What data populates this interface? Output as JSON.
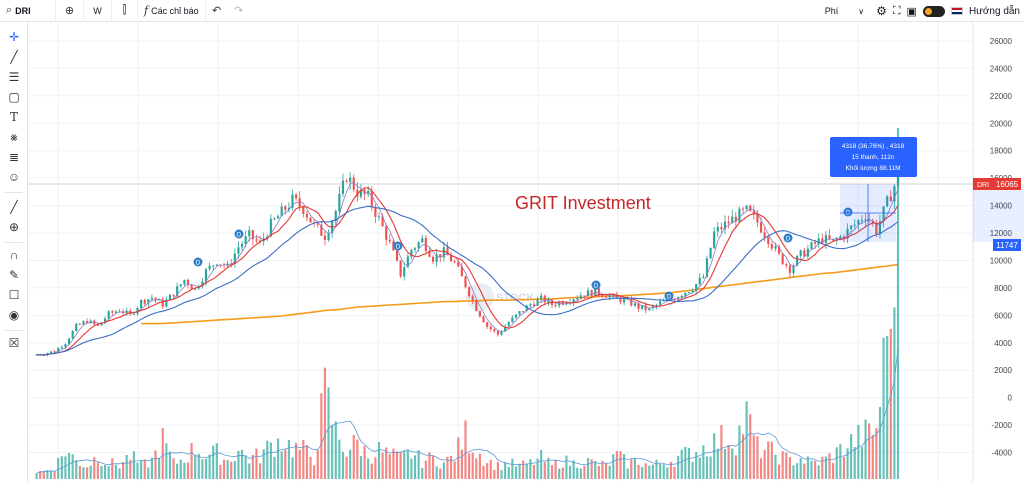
{
  "toolbar": {
    "symbol": "DRI",
    "interval": "W",
    "indicators_label": "Các chỉ báo",
    "fee_label": "Phí",
    "guide_label": "Hướng dẫn"
  },
  "icons": {
    "search": "search-icon",
    "add": "plus-circle-icon",
    "chart_type": "candles-icon",
    "indicators": "function-icon",
    "undo": "undo-icon",
    "redo": "redo-icon",
    "settings": "gear-icon",
    "fullscreen": "fullscreen-icon",
    "snapshot": "camera-icon",
    "theme": "theme-toggle",
    "language": "uk-flag-icon"
  },
  "sidebar_tools": [
    "crosshair-icon",
    "trendline-icon",
    "fib-icon",
    "rectangle-icon",
    "text-icon",
    "pattern-icon",
    "prediction-icon",
    "emoji-icon",
    "ruler-icon",
    "zoom-in-icon",
    "magnet-icon",
    "lock-draw-icon",
    "lock-icon",
    "eye-icon",
    "trash-icon"
  ],
  "chart": {
    "watermark": "GRIT Investment",
    "logo_text": "STOCK",
    "price_label_symbol": "DRI",
    "price_label_value": "16065",
    "range_low_label": "11747",
    "measure_line1": "4318 (36.76%) , 4318",
    "measure_line2": "15 thanh, 112n",
    "measure_line3": "Khối lượng 88.11M",
    "colors": {
      "up": "#26a69a",
      "down": "#ef5350",
      "ma_fast": "#e53935",
      "ma_mid": "#3c6ec5",
      "ma_slow": "#f59b1b",
      "ma_thin": "#8e7cc3"
    }
  },
  "chart_data": {
    "type": "candlestick",
    "symbol": "DRI",
    "interval": "W",
    "y_ticks": [
      26000,
      24000,
      22000,
      20000,
      18000,
      16000,
      14000,
      12000,
      10000,
      8000,
      6000,
      4000,
      2000,
      0,
      -2000,
      -4000
    ],
    "price_path": [
      3100,
      3200,
      3400,
      4000,
      5200,
      5600,
      5200,
      6100,
      6400,
      6000,
      7000,
      7300,
      6800,
      7600,
      8600,
      7900,
      9200,
      10000,
      9500,
      11000,
      11800,
      11200,
      12600,
      13500,
      14400,
      13800,
      12500,
      11800,
      13600,
      16200,
      15000,
      14600,
      13000,
      11200,
      9000,
      10800,
      11500,
      10200,
      10600,
      9800,
      8200,
      6500,
      5200,
      4600,
      5500,
      6200,
      6800,
      7200,
      6800,
      7000,
      7300,
      7600,
      7700,
      7500,
      7200,
      7000,
      6600,
      6400,
      6900,
      7200,
      7600,
      8000,
      8800,
      12000,
      12600,
      13200,
      13600,
      12800,
      11600,
      10300,
      9400,
      10400,
      11000,
      11600,
      11300,
      11900,
      12600,
      13400,
      12200,
      14200,
      16065
    ],
    "volume_path": [
      0.25,
      0.3,
      0.45,
      1.1,
      0.7,
      0.5,
      0.9,
      0.6,
      0.55,
      0.9,
      0.5,
      0.7,
      1.5,
      0.6,
      0.8,
      1.2,
      0.9,
      1.0,
      0.7,
      1.1,
      0.8,
      0.9,
      1.3,
      1.5,
      1.2,
      1.1,
      0.8,
      3.3,
      1.8,
      1.1,
      1.4,
      0.9,
      1.1,
      0.9,
      0.8,
      1.0,
      0.7,
      0.8,
      0.6,
      0.9,
      1.7,
      1.1,
      0.7,
      0.5,
      0.6,
      0.5,
      0.6,
      0.8,
      0.5,
      0.7,
      0.6,
      0.7,
      0.6,
      0.5,
      0.9,
      0.6,
      0.7,
      0.5,
      0.6,
      0.7,
      0.9,
      1.0,
      1.2,
      1.4,
      1.6,
      1.5,
      2.4,
      1.2,
      1.1,
      0.9,
      0.7,
      0.8,
      0.6,
      0.7,
      0.9,
      1.2,
      1.5,
      1.7,
      1.9,
      5.5,
      13.5
    ],
    "ma_slow_path": [
      null,
      null,
      null,
      null,
      null,
      null,
      null,
      null,
      null,
      null,
      5400,
      5400,
      5400,
      5450,
      5500,
      5550,
      5600,
      5650,
      5700,
      5750,
      5800,
      5850,
      5900,
      5950,
      6050,
      6150,
      6250,
      6350,
      6400,
      6500,
      6600,
      6650,
      6700,
      6750,
      6800,
      6850,
      6900,
      6950,
      7000,
      7000,
      7050,
      7050,
      7100,
      7100,
      7100,
      7150,
      7150,
      7200,
      7200,
      7250,
      7300,
      7300,
      7350,
      7400,
      7400,
      7450,
      7500,
      7550,
      7600,
      7650,
      7750,
      7850,
      7950,
      8050,
      8150,
      8250,
      8350,
      8450,
      8550,
      8650,
      8750,
      8850,
      8950,
      9050,
      9100,
      9200,
      9300,
      9400,
      9500,
      9600,
      9700
    ]
  }
}
